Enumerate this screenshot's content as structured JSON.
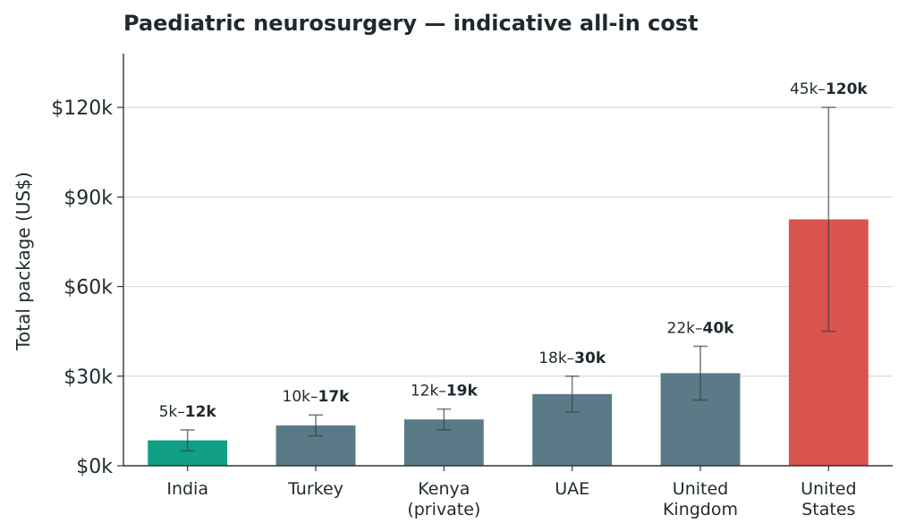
{
  "chart_data": {
    "type": "bar",
    "title": "Paediatric neurosurgery — indicative all-in cost",
    "xlabel": "",
    "ylabel": "Total package (US$)",
    "ylim": [
      0,
      138000
    ],
    "yticks": [
      0,
      30000,
      60000,
      90000,
      120000
    ],
    "ytick_labels": [
      "$0k",
      "$30k",
      "$60k",
      "$90k",
      "$120k"
    ],
    "grid": "horizontal",
    "categories": [
      [
        "India"
      ],
      [
        "Turkey"
      ],
      [
        "Kenya",
        "(private)"
      ],
      [
        "UAE"
      ],
      [
        "United",
        "Kingdom"
      ],
      [
        "United",
        "States"
      ]
    ],
    "values": [
      8500,
      13500,
      15500,
      24000,
      31000,
      82500
    ],
    "low": [
      5000,
      10000,
      12000,
      18000,
      22000,
      45000
    ],
    "high": [
      12000,
      17000,
      19000,
      30000,
      40000,
      120000
    ],
    "range_labels": [
      {
        "low": "5k",
        "high": "12k"
      },
      {
        "low": "10k",
        "high": "17k"
      },
      {
        "low": "12k",
        "high": "19k"
      },
      {
        "low": "18k",
        "high": "30k"
      },
      {
        "low": "22k",
        "high": "40k"
      },
      {
        "low": "45k",
        "high": "120k"
      }
    ],
    "colors": [
      "#12a085",
      "#5a7a87",
      "#5a7a87",
      "#5a7a87",
      "#5a7a87",
      "#d9534f"
    ],
    "error_bar_color": "#2f3f44",
    "grid_color": "#d9d9d9",
    "axis_color": "#333333"
  }
}
